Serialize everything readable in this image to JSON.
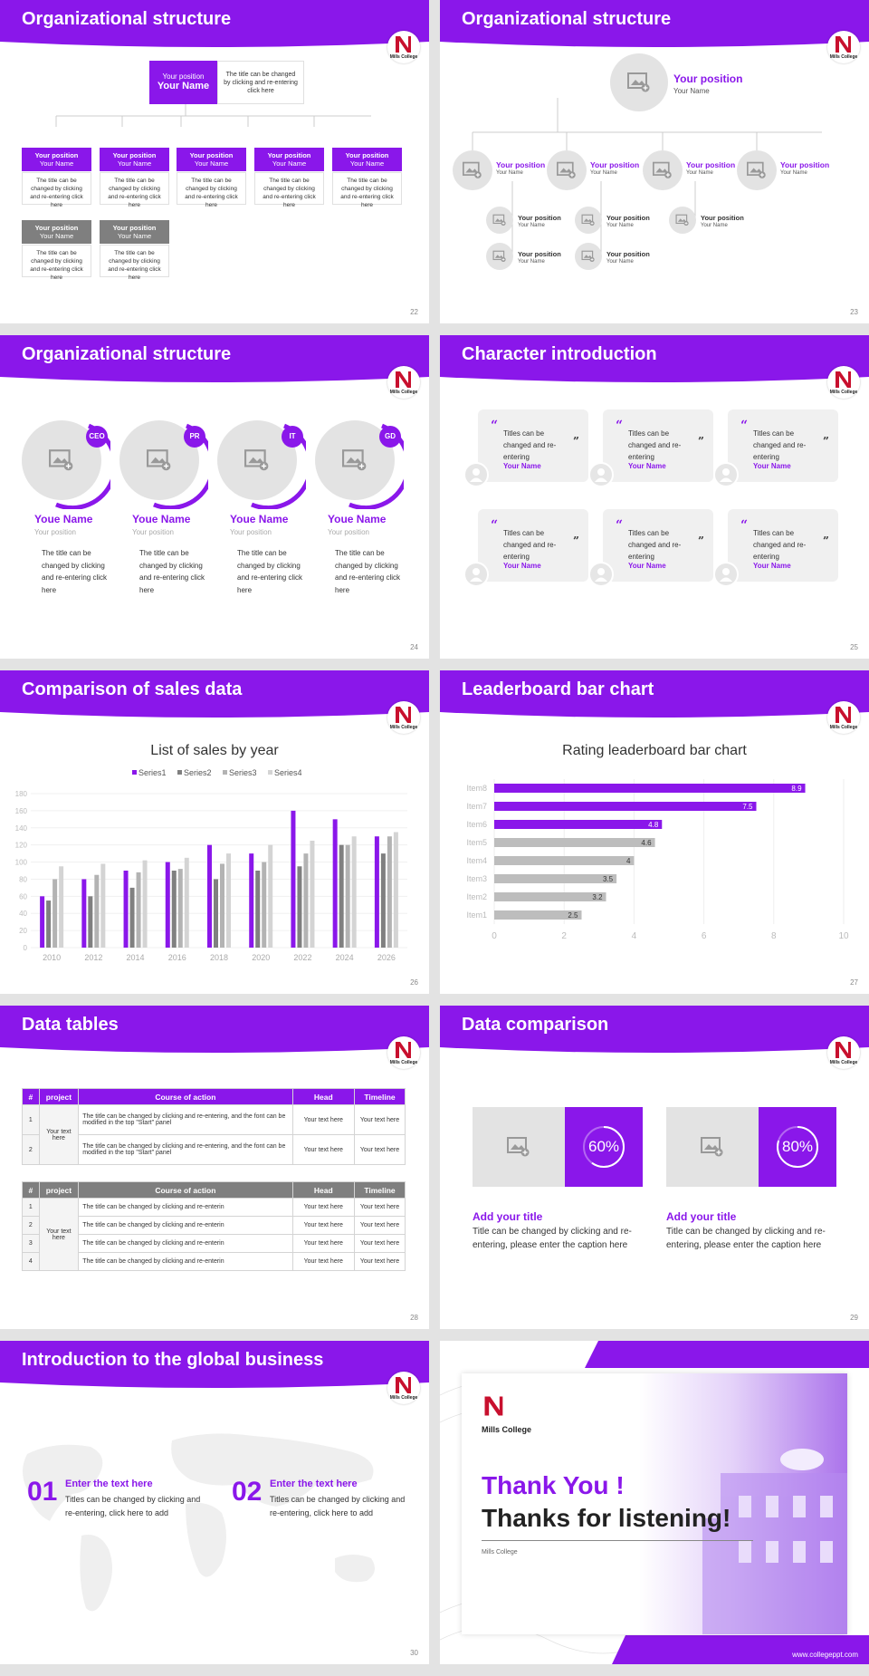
{
  "logo": {
    "name": "Mills College"
  },
  "s22": {
    "title": "Organizational structure",
    "page": "22",
    "top": {
      "position": "Your position",
      "name": "Your Name",
      "desc": "The title can be changed by clicking and re-entering click here"
    },
    "row1": [
      {
        "position": "Your position",
        "name": "Your Name",
        "desc": "The title can be changed by clicking and re-entering click here"
      },
      {
        "position": "Your position",
        "name": "Your Name",
        "desc": "The title can be changed by clicking and re-entering click here"
      },
      {
        "position": "Your position",
        "name": "Your Name",
        "desc": "The title can be changed by clicking and re-entering click here"
      },
      {
        "position": "Your position",
        "name": "Your Name",
        "desc": "The title can be changed by clicking and re-entering click here"
      },
      {
        "position": "Your position",
        "name": "Your Name",
        "desc": "The title can be changed by clicking and re-entering click here"
      }
    ],
    "row2": [
      {
        "position": "Your position",
        "name": "Your Name",
        "desc": "The title can be changed by clicking and re-entering click here"
      },
      {
        "position": "Your position",
        "name": "Your Name",
        "desc": "The title can be changed by clicking and re-entering click here"
      }
    ]
  },
  "s23": {
    "title": "Organizational structure",
    "page": "23",
    "top": {
      "position": "Your position",
      "name": "Your Name"
    },
    "mid": [
      {
        "position": "Your position",
        "name": "Your Name"
      },
      {
        "position": "Your position",
        "name": "Your Name"
      },
      {
        "position": "Your position",
        "name": "Your Name"
      },
      {
        "position": "Your position",
        "name": "Your Name"
      }
    ],
    "sub": [
      {
        "position": "Your position",
        "name": "Your Name"
      },
      {
        "position": "Your position",
        "name": "Your Name"
      },
      {
        "position": "Your position",
        "name": "Your Name"
      },
      {
        "position": "Your position",
        "name": "Your Name"
      },
      {
        "position": "Your position",
        "name": "Your Name"
      }
    ]
  },
  "s24": {
    "title": "Organizational structure",
    "page": "24",
    "people": [
      {
        "badge": "CEO",
        "name": "Youe Name",
        "position": "Your position",
        "desc": "The title can be changed by clicking and re-entering click here"
      },
      {
        "badge": "PR",
        "name": "Youe Name",
        "position": "Your position",
        "desc": "The title can be changed by clicking and re-entering click here"
      },
      {
        "badge": "IT",
        "name": "Youe Name",
        "position": "Your position",
        "desc": "The title can be changed by clicking and re-entering click here"
      },
      {
        "badge": "GD",
        "name": "Youe Name",
        "position": "Your position",
        "desc": "The title can be changed by clicking and re-entering click here"
      }
    ]
  },
  "s25": {
    "title": "Character introduction",
    "page": "25",
    "cards": [
      {
        "text": "Titles can be changed and re-entering",
        "name": "Your Name"
      },
      {
        "text": "Titles can be changed and re-entering",
        "name": "Your Name"
      },
      {
        "text": "Titles can be changed and re-entering",
        "name": "Your Name"
      },
      {
        "text": "Titles can be changed and re-entering",
        "name": "Your Name"
      },
      {
        "text": "Titles can be changed and re-entering",
        "name": "Your Name"
      },
      {
        "text": "Titles can be changed and re-entering",
        "name": "Your Name"
      }
    ]
  },
  "s26": {
    "title": "Comparison of sales data",
    "page": "26"
  },
  "s27": {
    "title": "Leaderboard bar chart",
    "page": "27"
  },
  "s28": {
    "title": "Data tables",
    "page": "28",
    "t1": {
      "headers": [
        "#",
        "project",
        "Course of action",
        "Head",
        "Timeline"
      ],
      "project": "Your text here",
      "rows": [
        {
          "n": "1",
          "course": "The title can be changed by clicking and re-entering, and the font can be modified in the top \"Start\" panel",
          "head": "Your text here",
          "time": "Your text here"
        },
        {
          "n": "2",
          "course": "The title can be changed by clicking and re-entering, and the font can be modified in the top \"Start\" panel",
          "head": "Your text here",
          "time": "Your text here"
        }
      ]
    },
    "t2": {
      "headers": [
        "#",
        "project",
        "Course of action",
        "Head",
        "Timeline"
      ],
      "project": "Your text here",
      "rows": [
        {
          "n": "1",
          "course": "The title can be changed by clicking and re-enterin",
          "head": "Your text here",
          "time": "Your text here"
        },
        {
          "n": "2",
          "course": "The title can be changed by clicking and re-enterin",
          "head": "Your text here",
          "time": "Your text here"
        },
        {
          "n": "3",
          "course": "The title can be changed by clicking and re-enterin",
          "head": "Your text here",
          "time": "Your text here"
        },
        {
          "n": "4",
          "course": "The title can be changed by clicking and re-enterin",
          "head": "Your text here",
          "time": "Your text here"
        }
      ]
    }
  },
  "s29": {
    "title": "Data comparison",
    "page": "29",
    "items": [
      {
        "percent": 60,
        "label": "60%",
        "title": "Add your title",
        "desc": "Title can be changed by clicking and re-entering, please enter the caption here"
      },
      {
        "percent": 80,
        "label": "80%",
        "title": "Add your title",
        "desc": "Title can be changed by clicking and re-entering, please enter the caption here"
      }
    ]
  },
  "s30": {
    "title": "Introduction to the global business",
    "page": "30",
    "items": [
      {
        "num": "01",
        "title": "Enter the text here",
        "desc": "Titles can be changed by clicking and re-entering, click here to add"
      },
      {
        "num": "02",
        "title": "Enter the text here",
        "desc": "Titles can be changed by clicking and re-entering, click here to add"
      }
    ]
  },
  "s31": {
    "thanks": "Thank You !",
    "listening": "Thanks for listening!",
    "college": "Mills College",
    "url": "www.collegeppt.com"
  },
  "chart_data": [
    {
      "type": "bar",
      "title": "List of sales by year",
      "categories": [
        "2010",
        "2012",
        "2014",
        "2016",
        "2018",
        "2020",
        "2022",
        "2024",
        "2026"
      ],
      "ylim": [
        0,
        180
      ],
      "yticks": [
        0,
        20,
        40,
        60,
        80,
        100,
        120,
        140,
        160,
        180
      ],
      "colors": [
        "#8a17ea",
        "#808080",
        "#b3b3b3",
        "#d4d4d4"
      ],
      "series": [
        {
          "name": "Series1",
          "values": [
            60,
            80,
            90,
            100,
            120,
            110,
            160,
            150,
            130
          ]
        },
        {
          "name": "Series2",
          "values": [
            55,
            60,
            70,
            90,
            80,
            90,
            95,
            120,
            110
          ]
        },
        {
          "name": "Series3",
          "values": [
            80,
            85,
            88,
            92,
            98,
            100,
            110,
            120,
            130
          ]
        },
        {
          "name": "Series4",
          "values": [
            95,
            98,
            102,
            105,
            110,
            120,
            125,
            130,
            135
          ]
        }
      ]
    },
    {
      "type": "bar",
      "orientation": "horizontal",
      "title": "Rating leaderboard bar chart",
      "categories": [
        "Item8",
        "Item7",
        "Item6",
        "Item5",
        "Item4",
        "Item3",
        "Item2",
        "Item1"
      ],
      "values": [
        8.9,
        7.5,
        4.8,
        4.6,
        4,
        3.5,
        3.2,
        2.5
      ],
      "xlim": [
        0,
        10
      ],
      "xticks": [
        0,
        2,
        4,
        6,
        8,
        10
      ]
    }
  ]
}
